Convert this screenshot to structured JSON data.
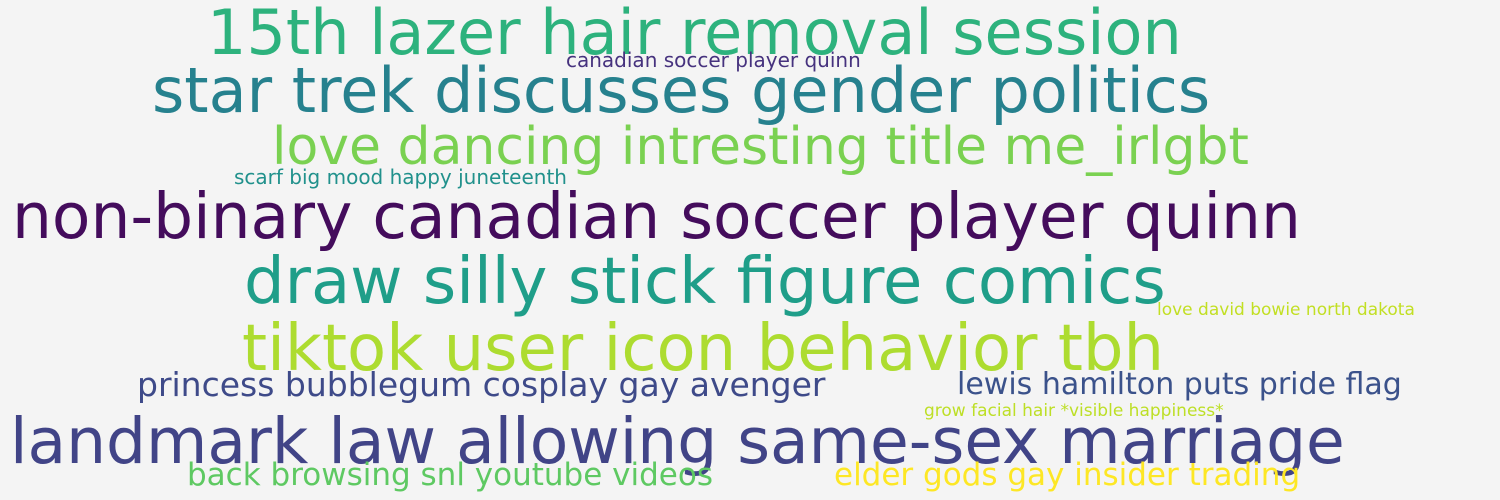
{
  "words": [
    {
      "text": "15th lazer hair removal session",
      "color": "#2db27d"
    },
    {
      "text": "canadian soccer player quinn",
      "color": "#46327e"
    },
    {
      "text": "star trek discusses gender politics",
      "color": "#26818e"
    },
    {
      "text": "love dancing intresting title me_irlgbt",
      "color": "#7ad151"
    },
    {
      "text": "scarf big mood happy juneteenth",
      "color": "#21918c"
    },
    {
      "text": "non-binary canadian soccer player quinn",
      "color": "#440c5c"
    },
    {
      "text": "draw silly stick figure comics",
      "color": "#1f9e89"
    },
    {
      "text": "love david bowie north dakota",
      "color": "#c2df23"
    },
    {
      "text": "tiktok user icon behavior tbh",
      "color": "#addc30"
    },
    {
      "text": "princess bubblegum cosplay gay avenger",
      "color": "#3e4a89"
    },
    {
      "text": "lewis hamilton puts pride flag",
      "color": "#3b528b"
    },
    {
      "text": "grow facial hair *visible happiness*",
      "color": "#bddf26"
    },
    {
      "text": "landmark law allowing same-sex marriage",
      "color": "#414487"
    },
    {
      "text": "back browsing snl youtube videos",
      "color": "#5ec962"
    },
    {
      "text": "elder gods gay insider trading",
      "color": "#fde725"
    }
  ]
}
